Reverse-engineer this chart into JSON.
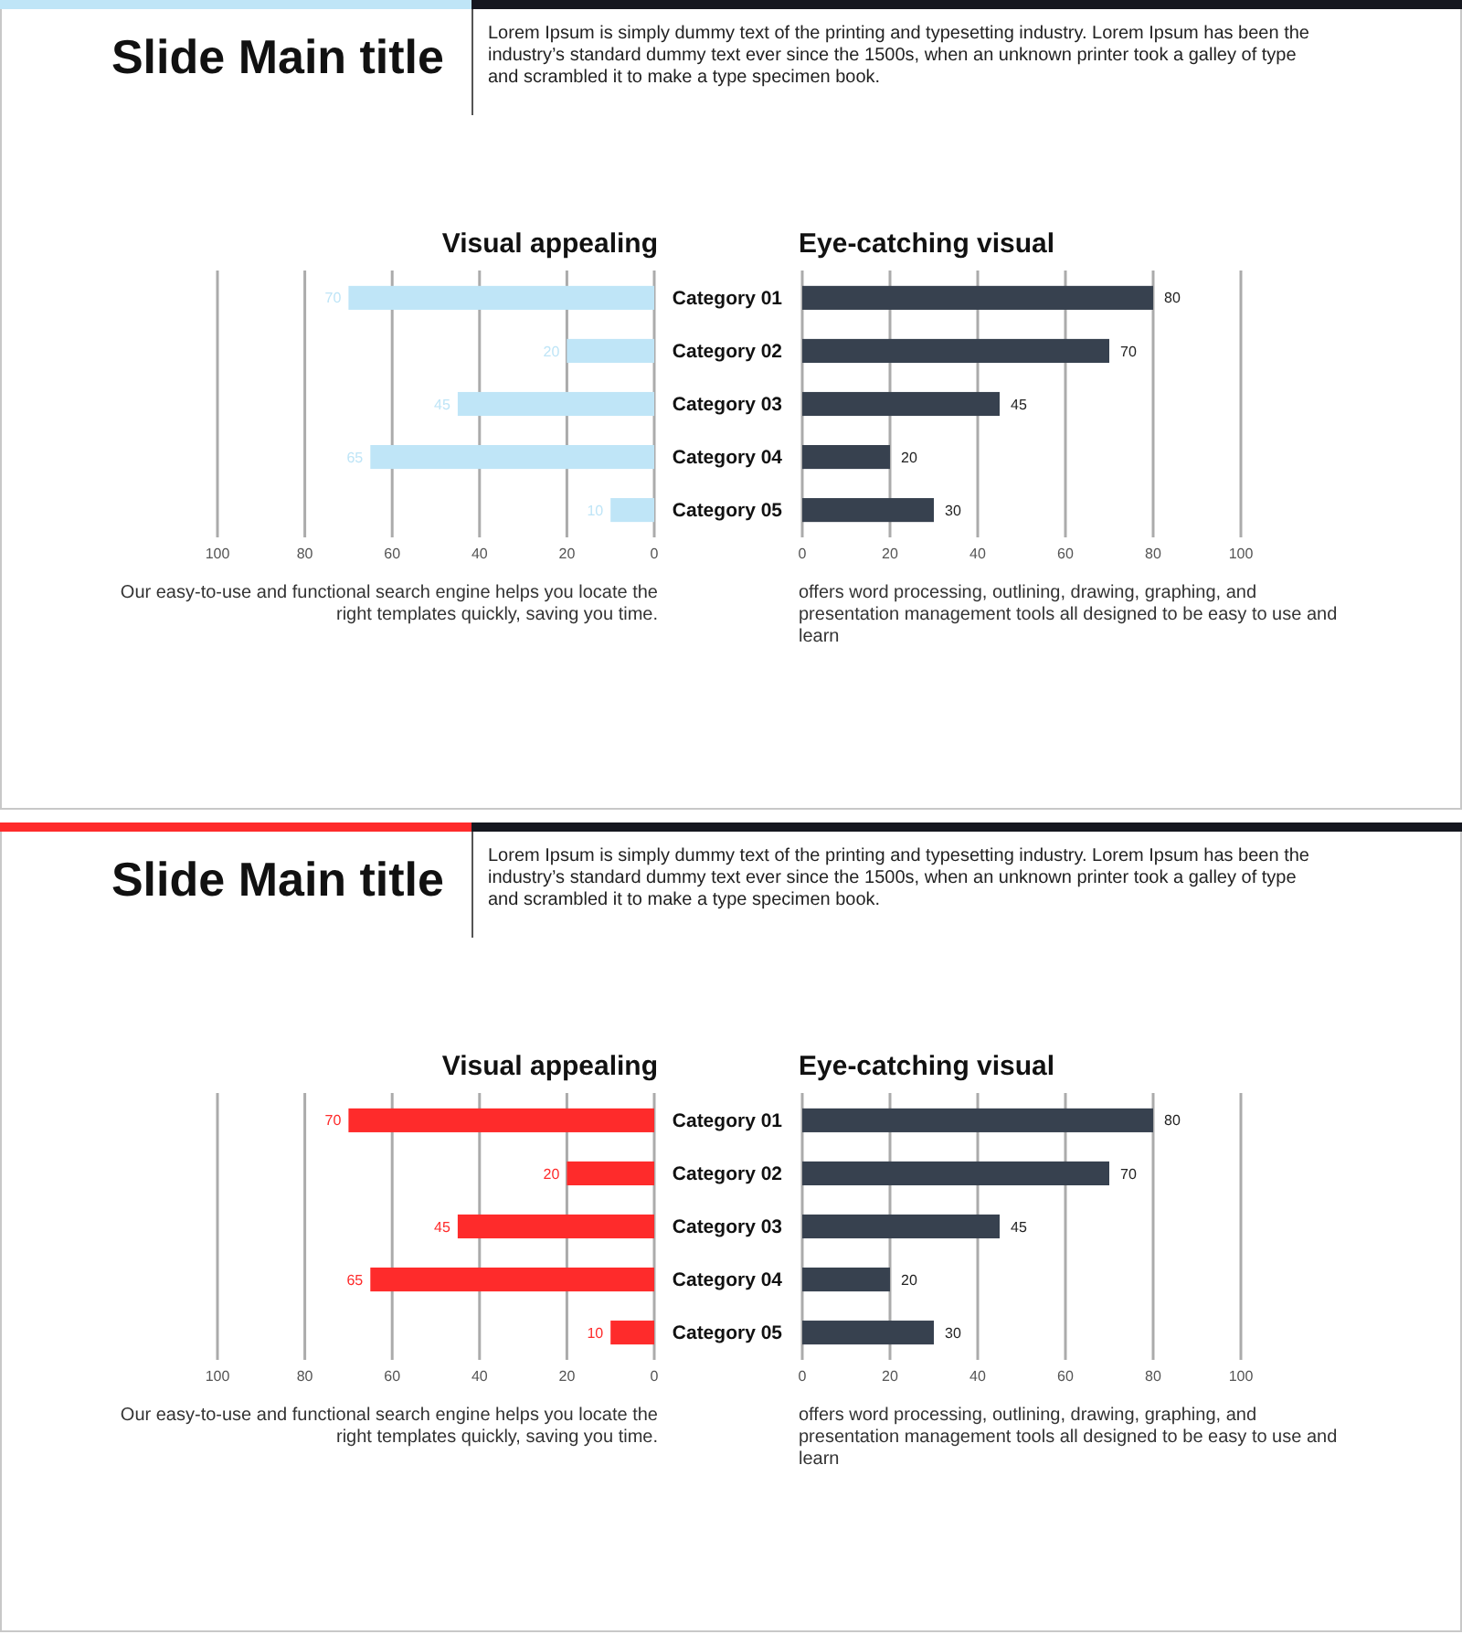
{
  "chart_data": [
    {
      "type": "other",
      "title": "Slide Main title",
      "subtitle": "Lorem Ipsum is simply dummy text of the printing and typesetting industry. Lorem Ipsum has been the industry’s standard dummy text ever since the 1500s, when an unknown printer took a galley of type and scrambled it to make a type specimen book."
    },
    {
      "type": "bar",
      "orientation": "horizontal",
      "title": "Visual appealing",
      "categories": [
        "Category 01",
        "Category 02",
        "Category 03",
        "Category 04",
        "Category 05"
      ],
      "values": [
        70,
        20,
        45,
        65,
        10
      ],
      "color": "#bfe5f7",
      "xlim": [
        100,
        0
      ],
      "xticks": [
        100,
        80,
        60,
        40,
        20,
        0
      ],
      "grid": "x",
      "data_labels": true,
      "tick_labels": "x",
      "annotations": [
        "Our easy-to-use and functional search engine helps you locate the right templates quickly, saving you time."
      ]
    },
    {
      "type": "bar",
      "orientation": "horizontal",
      "title": "Eye-catching visual",
      "categories": [
        "Category 01",
        "Category 02",
        "Category 03",
        "Category 04",
        "Category 05"
      ],
      "values": [
        80,
        70,
        45,
        20,
        30
      ],
      "color": "#37414f",
      "xlim": [
        0,
        100
      ],
      "xticks": [
        0,
        20,
        40,
        60,
        80,
        100
      ],
      "grid": "x",
      "data_labels": true,
      "annotations": [
        "offers word processing, outlining, drawing, graphing, and presentation management tools all designed to be easy to use and learn"
      ]
    },
    {
      "type": "other",
      "title": "Slide Main title",
      "subtitle": "Lorem Ipsum is simply dummy text of the printing and typesetting industry. Lorem Ipsum has been the industry’s standard dummy text ever since the 1500s, when an unknown printer took a galley of type and scrambled it to make a type specimen book."
    },
    {
      "type": "bar",
      "orientation": "horizontal",
      "title": "Visual appealing",
      "categories": [
        "Category 01",
        "Category 02",
        "Category 03",
        "Category 04",
        "Category 05"
      ],
      "values": [
        70,
        20,
        45,
        65,
        10
      ],
      "color": "#fe2b2b",
      "xlim": [
        100,
        0
      ],
      "xticks": [
        100,
        80,
        60,
        40,
        20,
        0
      ],
      "grid": "x",
      "data_labels": true,
      "tick_labels": "x",
      "annotations": [
        "Our easy-to-use and functional search engine helps you locate the right templates quickly, saving you time."
      ]
    },
    {
      "type": "bar",
      "orientation": "horizontal",
      "title": "Eye-catching visual",
      "categories": [
        "Category 01",
        "Category 02",
        "Category 03",
        "Category 04",
        "Category 05"
      ],
      "values": [
        80,
        70,
        45,
        20,
        30
      ],
      "color": "#37414f",
      "xlim": [
        0,
        100
      ],
      "xticks": [
        0,
        20,
        40,
        60,
        80,
        100
      ],
      "grid": "x",
      "data_labels": true,
      "annotations": [
        "offers word processing, outlining, drawing, graphing, and presentation management tools all designed to be easy to use and learn"
      ]
    }
  ]
}
